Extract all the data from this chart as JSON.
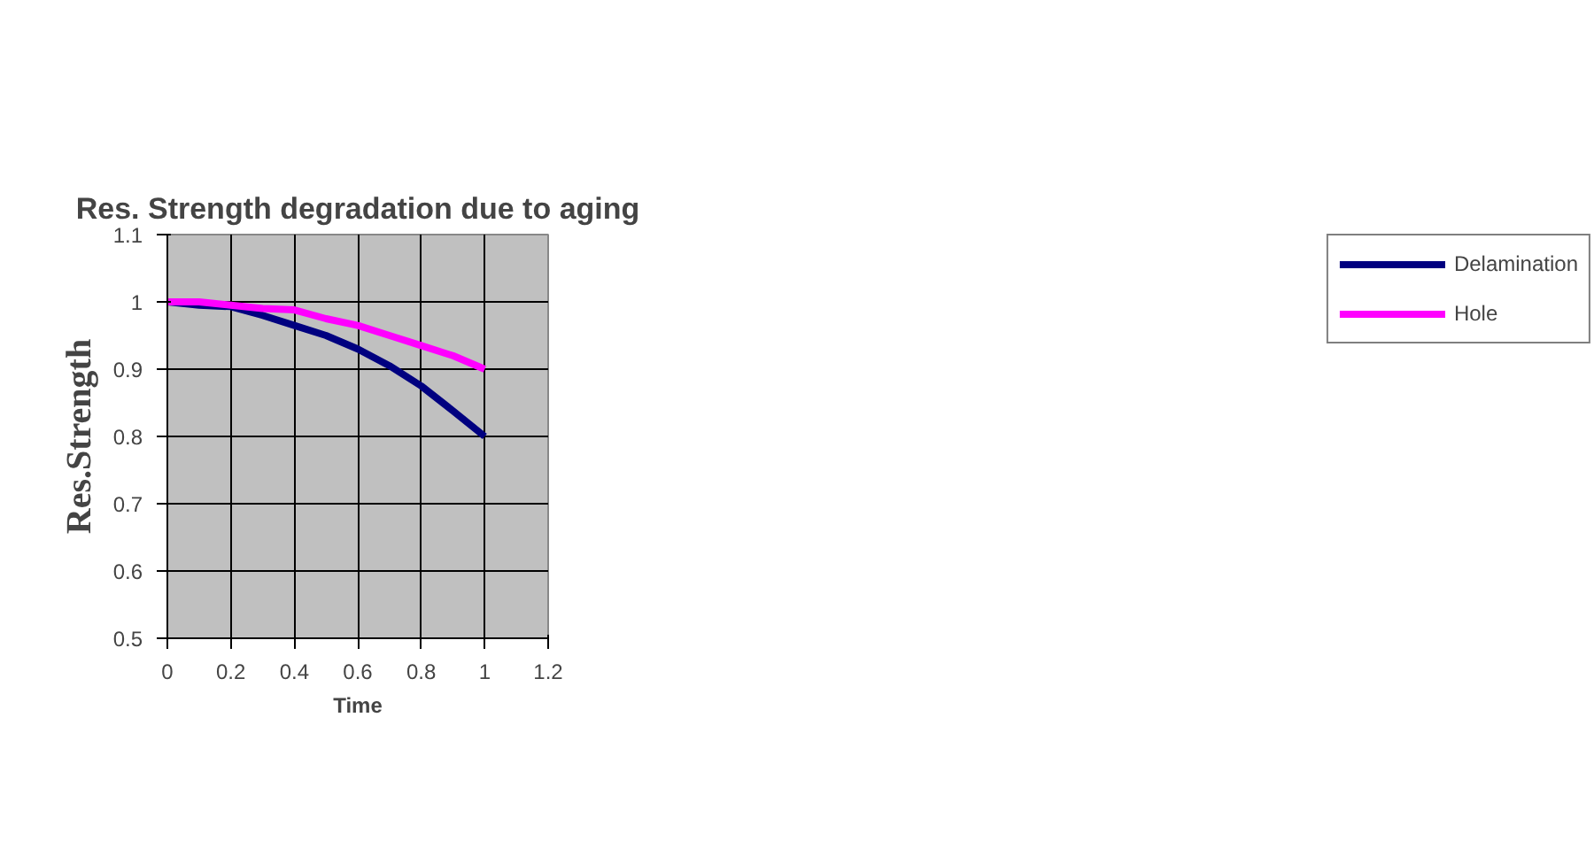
{
  "chart_data": {
    "type": "line",
    "title": "Res. Strength degradation due to aging",
    "xlabel": "Time",
    "ylabel": "Res.Strength",
    "x": [
      0,
      0.1,
      0.2,
      0.3,
      0.4,
      0.5,
      0.6,
      0.7,
      0.8,
      0.9,
      1
    ],
    "series": [
      {
        "name": "Delamination",
        "color": "#000080",
        "values": [
          1.0,
          0.995,
          0.993,
          0.98,
          0.965,
          0.95,
          0.93,
          0.905,
          0.875,
          0.838,
          0.8
        ]
      },
      {
        "name": "Hole",
        "color": "#ff00ff",
        "values": [
          1.0,
          1.0,
          0.995,
          0.99,
          0.988,
          0.975,
          0.965,
          0.95,
          0.935,
          0.92,
          0.9
        ]
      }
    ],
    "xlim": [
      0,
      1.2
    ],
    "xticks": [
      0,
      0.2,
      0.4,
      0.6,
      0.8,
      1,
      1.2
    ],
    "ylim": [
      0.5,
      1.1
    ],
    "yticks": [
      0.5,
      0.6,
      0.7,
      0.8,
      0.9,
      1,
      1.1
    ],
    "grid": true,
    "legend": "right",
    "marker": "none",
    "line_style": "solid"
  }
}
